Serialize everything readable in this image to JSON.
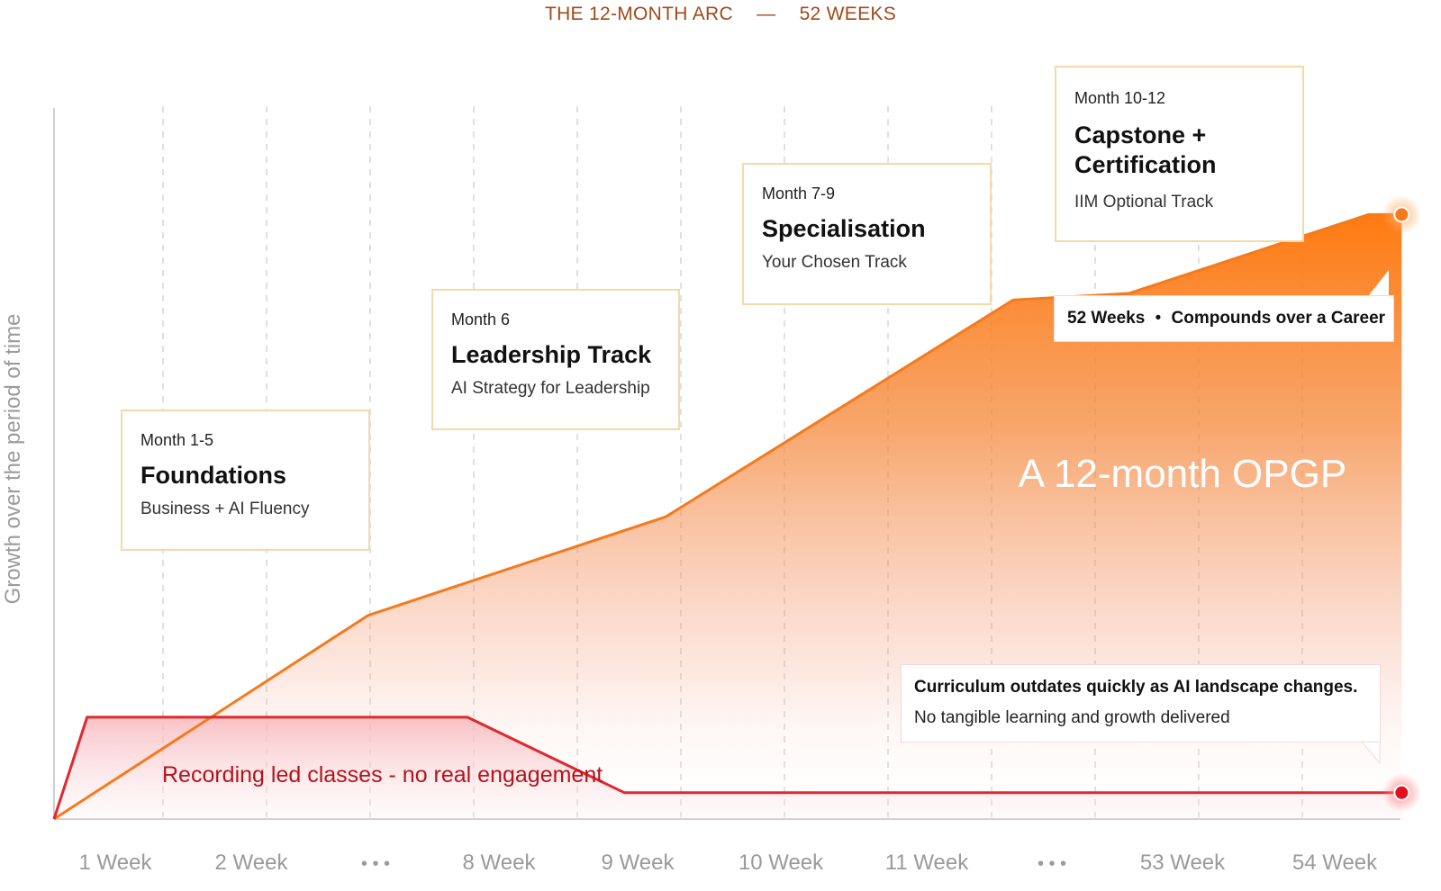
{
  "header": {
    "left": "THE 12-MONTH ARC",
    "dash": "—",
    "right": "52 WEEKS"
  },
  "colors": {
    "orange": "#f57a1c",
    "red": "#e0282e",
    "box_border": "#f6d9a8",
    "grid": "#d6d6d6"
  },
  "chart_data": {
    "type": "area",
    "ylabel": "Growth over the period of time",
    "x_labels": [
      "1 Week",
      "2 Week",
      "• • •",
      "8 Week",
      "9 Week",
      "10 Week",
      "11 Week",
      "• • •",
      "53 Week",
      "54 Week"
    ],
    "ylim": [
      0,
      100
    ],
    "grid": "vertical dashed",
    "series": [
      {
        "name": "A 12-month OPGP",
        "color": "#f57a1c",
        "points": [
          [
            0,
            0
          ],
          [
            3.8,
            31
          ],
          [
            7.4,
            46
          ],
          [
            11.6,
            79
          ],
          [
            13,
            80
          ],
          [
            15.9,
            92
          ],
          [
            16.3,
            92
          ]
        ]
      },
      {
        "name": "Recording led classes - no real engagement",
        "color": "#e0282e",
        "points": [
          [
            0,
            0
          ],
          [
            0.4,
            15.5
          ],
          [
            5,
            15.5
          ],
          [
            6.9,
            4
          ],
          [
            16.3,
            4
          ]
        ]
      }
    ],
    "annotations": {
      "milestones": [
        {
          "month": "Month 1-5",
          "title": "Foundations",
          "subtitle": "Business + AI Fluency"
        },
        {
          "month": "Month 6",
          "title": "Leadership Track",
          "subtitle": "AI Strategy for Leadership"
        },
        {
          "month": "Month 7-9",
          "title": "Specialisation",
          "subtitle": "Your Chosen Track"
        },
        {
          "month": "Month 10-12",
          "title": "Capstone + Certification",
          "title_line1": "Capstone +",
          "title_line2": "Certification",
          "subtitle": "IIM Optional Track"
        }
      ],
      "callout_top": {
        "left": "52 Weeks",
        "bullet": "•",
        "right": "Compounds over a Career"
      },
      "big_label": "A 12-month OPGP",
      "callout_bottom": {
        "line1": "Curriculum outdates quickly as AI landscape changes.",
        "line2": "No tangible learning and growth delivered"
      },
      "red_label": "Recording led classes - no real engagement"
    }
  }
}
